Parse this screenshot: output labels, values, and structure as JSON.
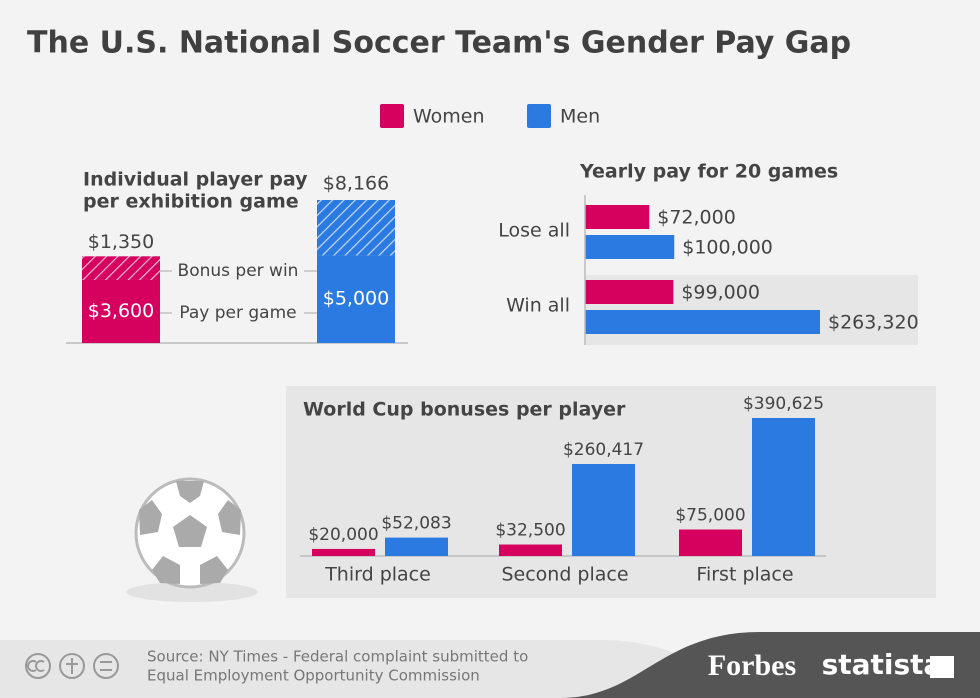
{
  "header": {
    "title": "The U.S. National Soccer Team's Gender Pay Gap"
  },
  "legend": {
    "items": [
      {
        "name": "Women",
        "color": "#d6005f"
      },
      {
        "name": "Men",
        "color": "#2a7ae2"
      }
    ]
  },
  "chart_data": [
    {
      "type": "stacked_bar",
      "title": [
        "Individual player pay",
        "per exhibition game"
      ],
      "colors": [
        "#d6005f",
        "#2a7ae2"
      ],
      "series": [
        {
          "name": "Pay per game",
          "values": [
            3600,
            5000
          ],
          "value_labels": [
            "$3,600",
            "$5,000"
          ]
        },
        {
          "name": "Bonus per win",
          "values": [
            1350,
            3166
          ],
          "value_labels": [
            "$1,350",
            null
          ],
          "pattern": "hatch"
        }
      ],
      "totals": [
        null,
        8166
      ],
      "total_labels": [
        null,
        "$8,166"
      ]
    },
    {
      "type": "hbar",
      "title": "Yearly pay for 20 games",
      "categories": [
        "Lose all",
        "Win all"
      ],
      "series": [
        {
          "color": "#d6005f",
          "values": [
            72000,
            99000
          ],
          "value_labels": [
            "$72,000",
            "$99,000"
          ]
        },
        {
          "color": "#2a7ae2",
          "values": [
            100000,
            263320
          ],
          "value_labels": [
            "$100,000",
            "$263,320"
          ]
        }
      ]
    },
    {
      "type": "bar",
      "title": "World Cup bonuses per player",
      "categories": [
        "Third place",
        "Second place",
        "First place"
      ],
      "series": [
        {
          "color": "#d6005f",
          "values": [
            20000,
            32500,
            75000
          ],
          "value_labels": [
            "$20,000",
            "$32,500",
            "$75,000"
          ]
        },
        {
          "color": "#2a7ae2",
          "values": [
            52083,
            260417,
            390625
          ],
          "value_labels": [
            "$52,083",
            "$260,417",
            "$390,625"
          ]
        }
      ]
    }
  ],
  "footer": {
    "source": [
      "Source: NY Times - Federal complaint submitted to",
      "Equal Employment Opportunity Commission"
    ],
    "brands": [
      "Forbes",
      "statista"
    ]
  }
}
